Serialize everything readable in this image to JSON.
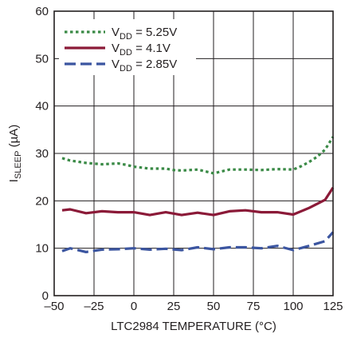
{
  "chart_data": {
    "type": "line",
    "title": "",
    "xlabel": "LTC2984 TEMPERATURE (°C)",
    "ylabel": {
      "main": "I",
      "sub": "SLEEP",
      "unit": " (µA)"
    },
    "xlim": [
      -50,
      125
    ],
    "ylim": [
      0,
      60
    ],
    "xticks": [
      -50,
      -25,
      0,
      25,
      50,
      75,
      100,
      125
    ],
    "yticks": [
      0,
      10,
      20,
      30,
      40,
      50,
      60
    ],
    "xtick_labels": [
      "–50",
      "–25",
      "0",
      "25",
      "50",
      "75",
      "100",
      "125"
    ],
    "ytick_labels": [
      "0",
      "10",
      "20",
      "30",
      "40",
      "50",
      "60"
    ],
    "grid": true,
    "legend_position": "top-left",
    "series": [
      {
        "name": "VDD = 5.25V",
        "legend": {
          "pre": "V",
          "sub": "DD",
          "post": " = 5.25V"
        },
        "color": "#3a8a46",
        "dash": "dotted",
        "x": [
          -45,
          -40,
          -30,
          -20,
          -10,
          -5,
          0,
          10,
          20,
          25,
          30,
          40,
          50,
          60,
          70,
          80,
          90,
          100,
          105,
          110,
          115,
          120,
          125
        ],
        "y": [
          29.0,
          28.5,
          28.0,
          27.7,
          27.9,
          27.6,
          27.2,
          26.8,
          26.8,
          26.5,
          26.4,
          26.6,
          25.8,
          26.6,
          26.6,
          26.5,
          26.7,
          26.6,
          27.3,
          28.2,
          29.3,
          30.8,
          33.5
        ]
      },
      {
        "name": "VDD = 4.1V",
        "legend": {
          "pre": "V",
          "sub": "DD",
          "post": " = 4.1V"
        },
        "color": "#8b1a38",
        "dash": "solid",
        "x": [
          -45,
          -40,
          -30,
          -20,
          -10,
          0,
          10,
          20,
          30,
          40,
          50,
          60,
          70,
          80,
          90,
          100,
          110,
          120,
          125
        ],
        "y": [
          18.0,
          18.2,
          17.4,
          17.8,
          17.6,
          17.6,
          17.0,
          17.6,
          17.0,
          17.5,
          17.0,
          17.8,
          18.0,
          17.6,
          17.6,
          17.1,
          18.5,
          20.2,
          22.8
        ]
      },
      {
        "name": "VDD = 2.85V",
        "legend": {
          "pre": "V",
          "sub": "DD",
          "post": " = 2.85V"
        },
        "color": "#3b55a0",
        "dash": "dashed",
        "x": [
          -45,
          -40,
          -30,
          -20,
          -10,
          0,
          10,
          20,
          30,
          40,
          50,
          60,
          70,
          80,
          90,
          100,
          110,
          120,
          125
        ],
        "y": [
          9.4,
          10.0,
          9.2,
          9.7,
          9.8,
          10.0,
          9.7,
          9.9,
          9.6,
          10.2,
          9.8,
          10.2,
          10.2,
          10.0,
          10.5,
          9.6,
          10.5,
          11.5,
          13.4
        ]
      }
    ]
  }
}
